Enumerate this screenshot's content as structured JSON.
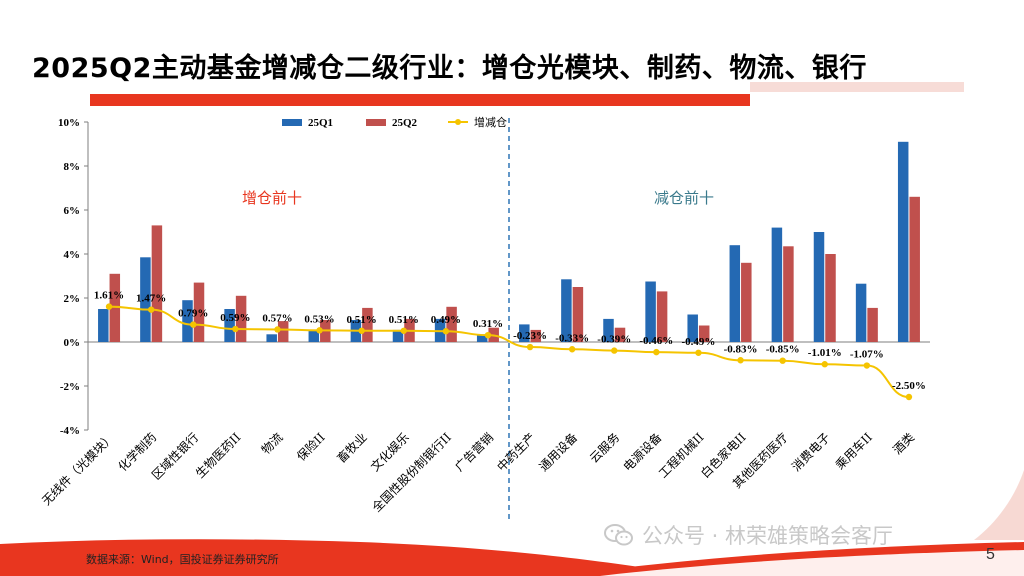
{
  "slide": {
    "title": "2025Q2主动基金增减仓二级行业：增仓光模块、制药、物流、银行",
    "source": "数据来源：Wind，国投证券证券研究所",
    "watermark": "公众号 · 林荣雄策略会客厅",
    "page_number": "5"
  },
  "colors": {
    "accent_red": "#e8361f",
    "series_25q1": "#2469b3",
    "series_25q2": "#c0504d",
    "series_change": "#f5c400",
    "divider": "#2e75b6",
    "annotation_increase": "#e8361f",
    "annotation_decrease": "#3a7a8c"
  },
  "chart_data": {
    "type": "bar",
    "categories": [
      "无线件（光模块）",
      "化学制药",
      "区域性银行",
      "生物医药II",
      "物流",
      "保险II",
      "畜牧业",
      "文化娱乐",
      "全国性股份制银行II",
      "广告营销",
      "中药生产",
      "通用设备",
      "云服务",
      "电源设备",
      "工程机械II",
      "白色家电II",
      "其他医药医疗",
      "消费电子",
      "乘用车II",
      "酒类"
    ],
    "series": [
      {
        "name": "25Q1",
        "type": "bar",
        "values": [
          1.5,
          3.85,
          1.9,
          1.5,
          0.35,
          0.5,
          1.0,
          0.55,
          1.05,
          0.35,
          0.8,
          2.85,
          1.05,
          2.75,
          1.25,
          4.4,
          5.2,
          5.0,
          2.65,
          9.1
        ]
      },
      {
        "name": "25Q2",
        "type": "bar",
        "values": [
          3.1,
          5.3,
          2.7,
          2.1,
          0.95,
          1.0,
          1.55,
          1.05,
          1.6,
          0.65,
          0.55,
          2.5,
          0.65,
          2.3,
          0.75,
          3.6,
          4.35,
          4.0,
          1.55,
          6.6
        ]
      },
      {
        "name": "增减仓",
        "type": "line",
        "values": [
          1.61,
          1.47,
          0.79,
          0.59,
          0.57,
          0.53,
          0.51,
          0.51,
          0.49,
          0.31,
          -0.23,
          -0.33,
          -0.39,
          -0.46,
          -0.49,
          -0.83,
          -0.85,
          -1.01,
          -1.07,
          -2.5
        ]
      }
    ],
    "change_labels": [
      "1.61%",
      "1.47%",
      "0.79%",
      "0.59%",
      "0.57%",
      "0.53%",
      "0.51%",
      "0.51%",
      "0.49%",
      "0.31%",
      "-0.23%",
      "-0.33%",
      "-0.39%",
      "-0.46%",
      "-0.49%",
      "-0.83%",
      "-0.85%",
      "-1.01%",
      "-1.07%",
      "-2.50%"
    ],
    "y_ticks": [
      "10%",
      "8%",
      "6%",
      "4%",
      "2%",
      "0%",
      "-2%",
      "-4%"
    ],
    "y_tick_values": [
      10,
      8,
      6,
      4,
      2,
      0,
      -2,
      -4
    ],
    "ylim": [
      -4,
      10
    ],
    "legend_position": "top",
    "grid": false,
    "annotations": {
      "increase": "增仓前十",
      "decrease": "减仓前十"
    }
  }
}
